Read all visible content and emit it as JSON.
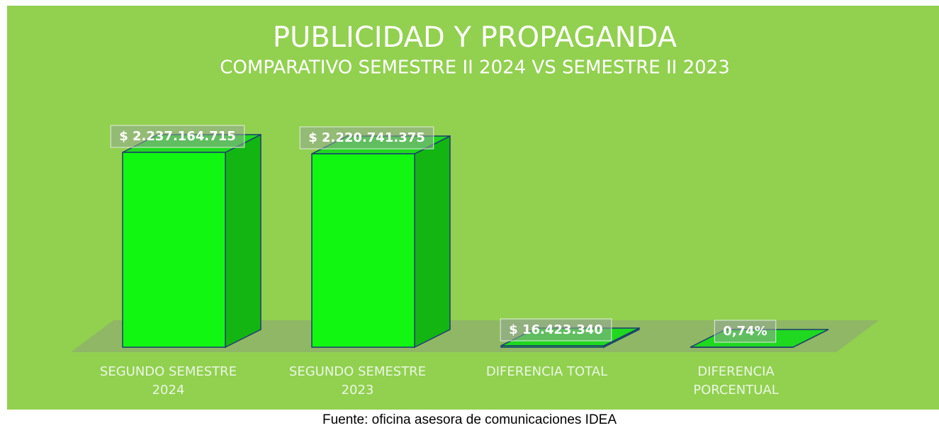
{
  "chart_data": {
    "type": "bar3d",
    "title": "PUBLICIDAD Y PROPAGANDA",
    "subtitle": "COMPARATIVO SEMESTRE II 2024 VS SEMESTRE II 2023",
    "categories": [
      "SEGUNDO SEMESTRE 2024",
      "SEGUNDO SEMESTRE 2023",
      "DIFERENCIA TOTAL",
      "DIFERENCIA PORCENTUAL"
    ],
    "values": [
      2237164715,
      2220741375,
      16423340,
      0.74
    ],
    "value_labels": [
      "$ 2.237.164.715",
      "$ 2.220.741.375",
      "$ 16.423.340",
      "0,74%"
    ],
    "color": "#11f711",
    "source": "Fuente: oficina asesora de comunicaciones IDEA"
  }
}
